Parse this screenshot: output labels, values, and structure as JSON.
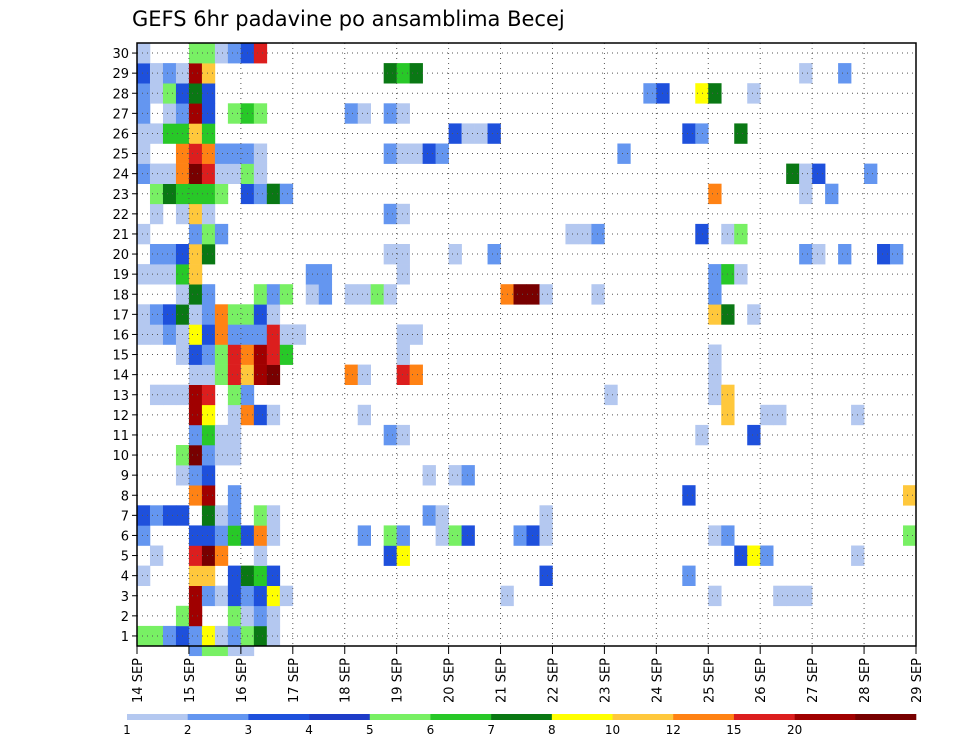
{
  "chart_data": {
    "type": "heatmap",
    "title": "GEFS 6hr padavine po ansamblima Becej",
    "xlabel": "",
    "ylabel": "",
    "x_tick_labels": [
      "14 SEP",
      "15 SEP",
      "16 SEP",
      "17 SEP",
      "18 SEP",
      "19 SEP",
      "20 SEP",
      "21 SEP",
      "22 SEP",
      "23 SEP",
      "24 SEP",
      "25 SEP",
      "26 SEP",
      "27 SEP",
      "28 SEP",
      "29 SEP"
    ],
    "y_tick_labels": [
      "1",
      "2",
      "3",
      "4",
      "5",
      "6",
      "7",
      "8",
      "9",
      "10",
      "11",
      "12",
      "13",
      "14",
      "15",
      "16",
      "17",
      "18",
      "19",
      "20",
      "21",
      "22",
      "23",
      "24",
      "25",
      "26",
      "27",
      "28",
      "29",
      "30"
    ],
    "xlim": [
      0,
      60
    ],
    "ylim": [
      0.5,
      30.5
    ],
    "grid": true,
    "colorbar": {
      "levels": [
        1,
        2,
        3,
        4,
        5,
        6,
        7,
        8,
        10,
        12,
        15,
        20
      ],
      "level_labels": [
        "1",
        "2",
        "3",
        "4",
        "5",
        "6",
        "7",
        "8",
        "10",
        "12",
        "15",
        "20"
      ],
      "colors": [
        "#b4c8f0",
        "#6496f0",
        "#1e50dc",
        "#1e3cc8",
        "#78f064",
        "#28c828",
        "#0a7814",
        "#ffff00",
        "#ffc83c",
        "#ff8214",
        "#dc1e1e",
        "#a00000",
        "#780000"
      ]
    },
    "cells": [
      [
        0,
        1,
        5
      ],
      [
        1,
        1,
        5
      ],
      [
        2,
        1,
        2
      ],
      [
        3,
        1,
        3
      ],
      [
        4,
        1,
        2
      ],
      [
        5,
        1,
        8
      ],
      [
        6,
        1,
        1
      ],
      [
        7,
        1,
        2
      ],
      [
        8,
        1,
        5
      ],
      [
        9,
        1,
        7
      ],
      [
        10,
        1,
        1
      ],
      [
        3,
        2,
        5
      ],
      [
        4,
        2,
        12
      ],
      [
        7,
        2,
        5
      ],
      [
        8,
        2,
        1
      ],
      [
        9,
        2,
        2
      ],
      [
        10,
        2,
        1
      ],
      [
        4,
        3,
        12
      ],
      [
        5,
        3,
        2
      ],
      [
        6,
        3,
        1
      ],
      [
        7,
        3,
        3
      ],
      [
        8,
        3,
        2
      ],
      [
        9,
        3,
        3
      ],
      [
        10,
        3,
        8
      ],
      [
        11,
        3,
        1
      ],
      [
        28,
        3,
        1
      ],
      [
        44,
        3,
        1
      ],
      [
        49,
        3,
        1
      ],
      [
        50,
        3,
        1
      ],
      [
        51,
        3,
        1
      ],
      [
        0,
        4,
        1
      ],
      [
        4,
        4,
        9
      ],
      [
        5,
        4,
        9
      ],
      [
        7,
        4,
        3
      ],
      [
        8,
        4,
        7
      ],
      [
        9,
        4,
        6
      ],
      [
        10,
        4,
        3
      ],
      [
        31,
        4,
        3
      ],
      [
        42,
        4,
        2
      ],
      [
        1,
        5,
        1
      ],
      [
        4,
        5,
        11
      ],
      [
        5,
        5,
        13
      ],
      [
        6,
        5,
        10
      ],
      [
        9,
        5,
        1
      ],
      [
        19,
        5,
        3
      ],
      [
        20,
        5,
        8
      ],
      [
        46,
        5,
        3
      ],
      [
        47,
        5,
        8
      ],
      [
        48,
        5,
        2
      ],
      [
        55,
        5,
        1
      ],
      [
        0,
        6,
        2
      ],
      [
        4,
        6,
        3
      ],
      [
        5,
        6,
        3
      ],
      [
        6,
        6,
        2
      ],
      [
        7,
        6,
        6
      ],
      [
        8,
        6,
        3
      ],
      [
        9,
        6,
        10
      ],
      [
        10,
        6,
        1
      ],
      [
        17,
        6,
        2
      ],
      [
        19,
        6,
        5
      ],
      [
        20,
        6,
        2
      ],
      [
        23,
        6,
        1
      ],
      [
        24,
        6,
        5
      ],
      [
        25,
        6,
        3
      ],
      [
        29,
        6,
        2
      ],
      [
        30,
        6,
        3
      ],
      [
        31,
        6,
        1
      ],
      [
        44,
        6,
        1
      ],
      [
        45,
        6,
        2
      ],
      [
        59,
        6,
        5
      ],
      [
        0,
        7,
        3
      ],
      [
        1,
        7,
        2
      ],
      [
        2,
        7,
        3
      ],
      [
        3,
        7,
        3
      ],
      [
        5,
        7,
        7
      ],
      [
        6,
        7,
        1
      ],
      [
        7,
        7,
        2
      ],
      [
        9,
        7,
        5
      ],
      [
        10,
        7,
        1
      ],
      [
        22,
        7,
        2
      ],
      [
        23,
        7,
        1
      ],
      [
        31,
        7,
        1
      ],
      [
        4,
        8,
        10
      ],
      [
        5,
        8,
        12
      ],
      [
        7,
        8,
        2
      ],
      [
        42,
        8,
        3
      ],
      [
        59,
        8,
        9
      ],
      [
        3,
        9,
        1
      ],
      [
        4,
        9,
        2
      ],
      [
        5,
        9,
        3
      ],
      [
        22,
        9,
        1
      ],
      [
        24,
        9,
        1
      ],
      [
        25,
        9,
        2
      ],
      [
        3,
        10,
        5
      ],
      [
        4,
        10,
        13
      ],
      [
        5,
        10,
        2
      ],
      [
        6,
        10,
        1
      ],
      [
        7,
        10,
        1
      ],
      [
        4,
        11,
        2
      ],
      [
        5,
        11,
        6
      ],
      [
        6,
        11,
        1
      ],
      [
        7,
        11,
        1
      ],
      [
        19,
        11,
        2
      ],
      [
        20,
        11,
        1
      ],
      [
        43,
        11,
        1
      ],
      [
        47,
        11,
        3
      ],
      [
        4,
        12,
        12
      ],
      [
        5,
        12,
        8
      ],
      [
        7,
        12,
        1
      ],
      [
        8,
        12,
        10
      ],
      [
        9,
        12,
        3
      ],
      [
        10,
        12,
        1
      ],
      [
        17,
        12,
        1
      ],
      [
        45,
        12,
        9
      ],
      [
        48,
        12,
        1
      ],
      [
        49,
        12,
        1
      ],
      [
        55,
        12,
        1
      ],
      [
        1,
        13,
        1
      ],
      [
        2,
        13,
        1
      ],
      [
        3,
        13,
        1
      ],
      [
        4,
        13,
        12
      ],
      [
        5,
        13,
        11
      ],
      [
        7,
        13,
        5
      ],
      [
        8,
        13,
        2
      ],
      [
        36,
        13,
        1
      ],
      [
        44,
        13,
        1
      ],
      [
        45,
        13,
        9
      ],
      [
        4,
        14,
        1
      ],
      [
        5,
        14,
        1
      ],
      [
        6,
        14,
        5
      ],
      [
        7,
        14,
        11
      ],
      [
        8,
        14,
        9
      ],
      [
        9,
        14,
        12
      ],
      [
        10,
        14,
        13
      ],
      [
        16,
        14,
        10
      ],
      [
        17,
        14,
        1
      ],
      [
        20,
        14,
        11
      ],
      [
        21,
        14,
        10
      ],
      [
        44,
        14,
        1
      ],
      [
        3,
        15,
        1
      ],
      [
        4,
        15,
        3
      ],
      [
        5,
        15,
        2
      ],
      [
        6,
        15,
        5
      ],
      [
        7,
        15,
        11
      ],
      [
        8,
        15,
        10
      ],
      [
        9,
        15,
        12
      ],
      [
        10,
        15,
        11
      ],
      [
        11,
        15,
        6
      ],
      [
        20,
        15,
        1
      ],
      [
        44,
        15,
        1
      ],
      [
        0,
        16,
        1
      ],
      [
        1,
        16,
        1
      ],
      [
        2,
        16,
        2
      ],
      [
        3,
        16,
        1
      ],
      [
        4,
        16,
        8
      ],
      [
        5,
        16,
        3
      ],
      [
        6,
        16,
        10
      ],
      [
        7,
        16,
        2
      ],
      [
        8,
        16,
        2
      ],
      [
        9,
        16,
        2
      ],
      [
        10,
        16,
        11
      ],
      [
        11,
        16,
        1
      ],
      [
        12,
        16,
        1
      ],
      [
        20,
        16,
        1
      ],
      [
        21,
        16,
        1
      ],
      [
        0,
        17,
        1
      ],
      [
        1,
        17,
        2
      ],
      [
        2,
        17,
        3
      ],
      [
        3,
        17,
        7
      ],
      [
        4,
        17,
        1
      ],
      [
        5,
        17,
        2
      ],
      [
        6,
        17,
        10
      ],
      [
        7,
        17,
        5
      ],
      [
        8,
        17,
        5
      ],
      [
        9,
        17,
        3
      ],
      [
        10,
        17,
        1
      ],
      [
        44,
        17,
        9
      ],
      [
        45,
        17,
        7
      ],
      [
        47,
        17,
        1
      ],
      [
        3,
        18,
        1
      ],
      [
        4,
        18,
        7
      ],
      [
        5,
        18,
        2
      ],
      [
        9,
        18,
        5
      ],
      [
        10,
        18,
        2
      ],
      [
        11,
        18,
        5
      ],
      [
        13,
        18,
        1
      ],
      [
        14,
        18,
        2
      ],
      [
        16,
        18,
        1
      ],
      [
        17,
        18,
        1
      ],
      [
        18,
        18,
        5
      ],
      [
        19,
        18,
        1
      ],
      [
        28,
        18,
        10
      ],
      [
        29,
        18,
        13
      ],
      [
        30,
        18,
        13
      ],
      [
        31,
        18,
        1
      ],
      [
        35,
        18,
        1
      ],
      [
        44,
        18,
        2
      ],
      [
        0,
        19,
        1
      ],
      [
        1,
        19,
        1
      ],
      [
        2,
        19,
        1
      ],
      [
        3,
        19,
        6
      ],
      [
        4,
        19,
        9
      ],
      [
        13,
        19,
        2
      ],
      [
        14,
        19,
        2
      ],
      [
        20,
        19,
        1
      ],
      [
        44,
        19,
        2
      ],
      [
        45,
        19,
        6
      ],
      [
        46,
        19,
        1
      ],
      [
        1,
        20,
        2
      ],
      [
        2,
        20,
        2
      ],
      [
        3,
        20,
        3
      ],
      [
        4,
        20,
        9
      ],
      [
        5,
        20,
        7
      ],
      [
        19,
        20,
        1
      ],
      [
        20,
        20,
        1
      ],
      [
        24,
        20,
        1
      ],
      [
        27,
        20,
        2
      ],
      [
        51,
        20,
        2
      ],
      [
        52,
        20,
        1
      ],
      [
        54,
        20,
        2
      ],
      [
        57,
        20,
        3
      ],
      [
        58,
        20,
        2
      ],
      [
        0,
        21,
        1
      ],
      [
        4,
        21,
        2
      ],
      [
        5,
        21,
        5
      ],
      [
        6,
        21,
        2
      ],
      [
        33,
        21,
        1
      ],
      [
        34,
        21,
        1
      ],
      [
        35,
        21,
        2
      ],
      [
        43,
        21,
        3
      ],
      [
        45,
        21,
        1
      ],
      [
        46,
        21,
        5
      ],
      [
        1,
        22,
        1
      ],
      [
        3,
        22,
        1
      ],
      [
        4,
        22,
        9
      ],
      [
        5,
        22,
        1
      ],
      [
        19,
        22,
        2
      ],
      [
        20,
        22,
        1
      ],
      [
        1,
        23,
        5
      ],
      [
        2,
        23,
        7
      ],
      [
        3,
        23,
        6
      ],
      [
        4,
        23,
        6
      ],
      [
        5,
        23,
        6
      ],
      [
        6,
        23,
        5
      ],
      [
        8,
        23,
        3
      ],
      [
        9,
        23,
        2
      ],
      [
        10,
        23,
        7
      ],
      [
        11,
        23,
        2
      ],
      [
        44,
        23,
        10
      ],
      [
        51,
        23,
        1
      ],
      [
        53,
        23,
        2
      ],
      [
        0,
        24,
        2
      ],
      [
        1,
        24,
        1
      ],
      [
        2,
        24,
        1
      ],
      [
        3,
        24,
        10
      ],
      [
        4,
        24,
        13
      ],
      [
        5,
        24,
        11
      ],
      [
        6,
        24,
        1
      ],
      [
        7,
        24,
        1
      ],
      [
        8,
        24,
        5
      ],
      [
        9,
        24,
        1
      ],
      [
        50,
        24,
        7
      ],
      [
        51,
        24,
        1
      ],
      [
        52,
        24,
        3
      ],
      [
        56,
        24,
        2
      ],
      [
        0,
        25,
        1
      ],
      [
        3,
        25,
        10
      ],
      [
        4,
        25,
        11
      ],
      [
        5,
        25,
        10
      ],
      [
        6,
        25,
        2
      ],
      [
        7,
        25,
        2
      ],
      [
        8,
        25,
        2
      ],
      [
        9,
        25,
        1
      ],
      [
        19,
        25,
        2
      ],
      [
        20,
        25,
        1
      ],
      [
        21,
        25,
        1
      ],
      [
        22,
        25,
        3
      ],
      [
        23,
        25,
        2
      ],
      [
        37,
        25,
        2
      ],
      [
        0,
        26,
        1
      ],
      [
        1,
        26,
        1
      ],
      [
        2,
        26,
        6
      ],
      [
        3,
        26,
        6
      ],
      [
        4,
        26,
        9
      ],
      [
        5,
        26,
        6
      ],
      [
        24,
        26,
        3
      ],
      [
        25,
        26,
        1
      ],
      [
        26,
        26,
        1
      ],
      [
        27,
        26,
        3
      ],
      [
        42,
        26,
        3
      ],
      [
        43,
        26,
        2
      ],
      [
        46,
        26,
        7
      ],
      [
        0,
        27,
        2
      ],
      [
        2,
        27,
        1
      ],
      [
        3,
        27,
        2
      ],
      [
        4,
        27,
        12
      ],
      [
        5,
        27,
        3
      ],
      [
        7,
        27,
        5
      ],
      [
        8,
        27,
        6
      ],
      [
        9,
        27,
        5
      ],
      [
        16,
        27,
        2
      ],
      [
        17,
        27,
        1
      ],
      [
        19,
        27,
        2
      ],
      [
        20,
        27,
        1
      ],
      [
        0,
        28,
        2
      ],
      [
        1,
        28,
        1
      ],
      [
        2,
        28,
        5
      ],
      [
        3,
        28,
        3
      ],
      [
        4,
        28,
        7
      ],
      [
        5,
        28,
        3
      ],
      [
        39,
        28,
        2
      ],
      [
        40,
        28,
        3
      ],
      [
        43,
        28,
        8
      ],
      [
        44,
        28,
        7
      ],
      [
        47,
        28,
        1
      ],
      [
        0,
        29,
        3
      ],
      [
        1,
        29,
        1
      ],
      [
        2,
        29,
        2
      ],
      [
        3,
        29,
        1
      ],
      [
        4,
        29,
        12
      ],
      [
        5,
        29,
        9
      ],
      [
        19,
        29,
        7
      ],
      [
        20,
        29,
        6
      ],
      [
        21,
        29,
        7
      ],
      [
        51,
        29,
        1
      ],
      [
        54,
        29,
        2
      ],
      [
        0,
        30,
        1
      ],
      [
        4,
        30,
        5
      ],
      [
        5,
        30,
        5
      ],
      [
        6,
        30,
        1
      ],
      [
        7,
        30,
        2
      ],
      [
        8,
        30,
        3
      ],
      [
        9,
        30,
        11
      ]
    ],
    "overflow_cells": [
      [
        4,
        0,
        2
      ],
      [
        5,
        0,
        5
      ],
      [
        6,
        0,
        5
      ],
      [
        7,
        0,
        1
      ],
      [
        8,
        0,
        1
      ]
    ]
  }
}
